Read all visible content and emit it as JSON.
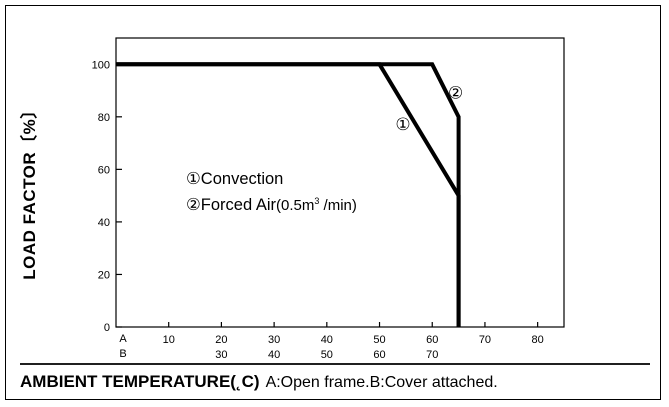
{
  "chart_data": {
    "type": "line",
    "title": "",
    "ylabel": "LOAD FACTOR〔%〕",
    "xlabel": "AMBIENT TEMPERATURE(˛C)",
    "xlabel_note": "A:Open frame.B:Cover attached.",
    "ylim": [
      0,
      110
    ],
    "xlim": [
      0,
      85
    ],
    "yticks": [
      0,
      20,
      40,
      60,
      80,
      100
    ],
    "x_axes": [
      {
        "name": "A",
        "ticks": [
          10,
          20,
          30,
          40,
          50,
          60,
          70,
          80
        ]
      },
      {
        "name": "B",
        "ticks": [
          30,
          40,
          50,
          60,
          70
        ]
      }
    ],
    "series": [
      {
        "name": "①",
        "axis": "A",
        "x": [
          0,
          50,
          65,
          65
        ],
        "y": [
          100,
          100,
          50,
          0
        ]
      },
      {
        "name": "②",
        "axis": "A",
        "x": [
          0,
          60,
          65,
          65
        ],
        "y": [
          100,
          100,
          80,
          0
        ]
      }
    ],
    "legend": [
      {
        "mark": "①",
        "label": "Convection"
      },
      {
        "mark": "②",
        "label": "Forced Air",
        "flow": "(0.5m",
        "flow_sup": "3",
        "flow_end": " /min)"
      }
    ],
    "grid": false
  }
}
